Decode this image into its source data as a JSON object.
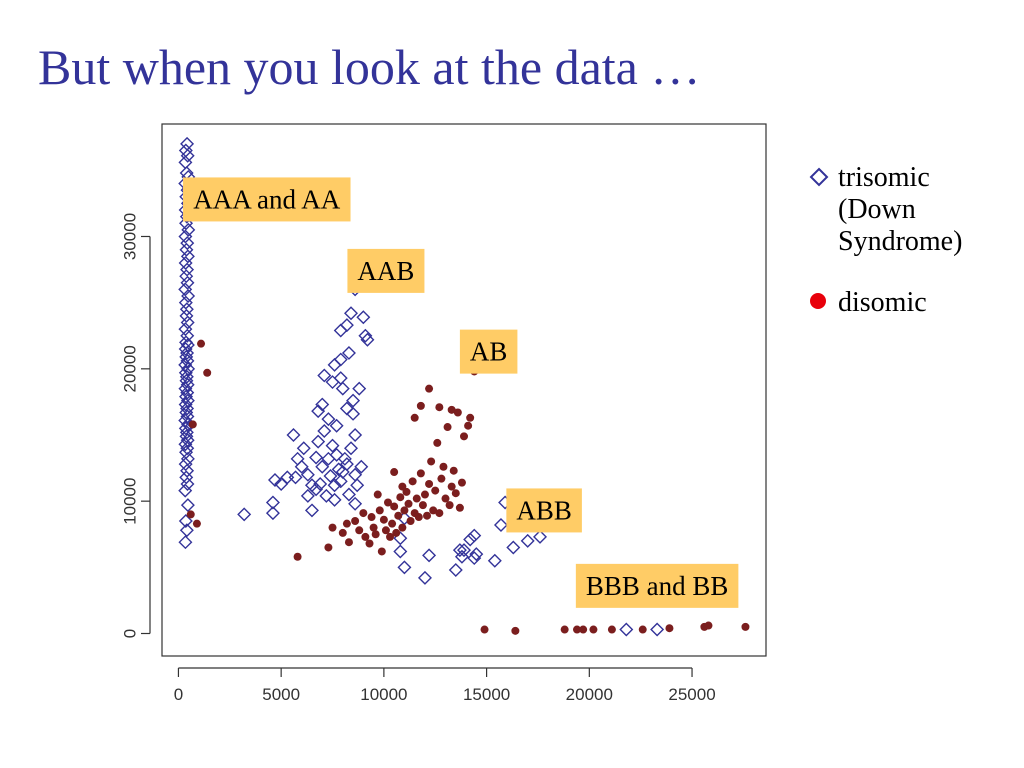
{
  "slide": {
    "title": "But when you look at the data …"
  },
  "legend": {
    "items": [
      {
        "label": "trisomic (Down Syndrome)",
        "marker": "open-diamond",
        "color": "#333399"
      },
      {
        "label": "disomic",
        "marker": "filled-circle",
        "color": "#e8000b"
      }
    ]
  },
  "colors": {
    "title": "#333399",
    "trisomic": "#333399",
    "disomic": "#7b1e1e",
    "label_box": "#ffcc66"
  },
  "chart_data": {
    "type": "scatter",
    "xlim": [
      -800,
      28600
    ],
    "ylim": [
      -1700,
      38500
    ],
    "xticks": [
      0,
      5000,
      10000,
      15000,
      20000,
      25000
    ],
    "yticks": [
      0,
      10000,
      20000,
      30000
    ],
    "grid": false,
    "annotations": [
      {
        "text": "AAA and AA",
        "x": 4300,
        "y": 32800
      },
      {
        "text": "AAB",
        "x": 10100,
        "y": 27400
      },
      {
        "text": "AB",
        "x": 15100,
        "y": 21300
      },
      {
        "text": "ABB",
        "x": 17800,
        "y": 9300
      },
      {
        "text": "BBB and BB",
        "x": 23300,
        "y": 3600
      }
    ],
    "series": [
      {
        "points": [
          [
            420,
            37000
          ],
          [
            360,
            36500
          ],
          [
            450,
            36100
          ],
          [
            340,
            35600
          ],
          [
            400,
            34800
          ],
          [
            480,
            34500
          ],
          [
            330,
            34000
          ],
          [
            440,
            33500
          ],
          [
            380,
            33000
          ],
          [
            460,
            32500
          ],
          [
            350,
            32000
          ],
          [
            410,
            31500
          ],
          [
            370,
            31000
          ],
          [
            480,
            30500
          ],
          [
            340,
            30000
          ],
          [
            430,
            29500
          ],
          [
            390,
            29000
          ],
          [
            460,
            28500
          ],
          [
            350,
            28000
          ],
          [
            420,
            27500
          ],
          [
            380,
            27000
          ],
          [
            440,
            26500
          ],
          [
            330,
            26000
          ],
          [
            470,
            25500
          ],
          [
            360,
            25000
          ],
          [
            410,
            24500
          ],
          [
            390,
            24000
          ],
          [
            450,
            23500
          ],
          [
            340,
            23000
          ],
          [
            430,
            22500
          ],
          [
            370,
            22000
          ],
          [
            460,
            21800
          ],
          [
            350,
            21500
          ],
          [
            420,
            21200
          ],
          [
            380,
            20900
          ],
          [
            440,
            20600
          ],
          [
            330,
            20300
          ],
          [
            470,
            20000
          ],
          [
            360,
            19700
          ],
          [
            410,
            19400
          ],
          [
            390,
            19100
          ],
          [
            450,
            18800
          ],
          [
            340,
            18500
          ],
          [
            430,
            18200
          ],
          [
            370,
            17900
          ],
          [
            460,
            17600
          ],
          [
            350,
            17300
          ],
          [
            420,
            17000
          ],
          [
            380,
            16700
          ],
          [
            440,
            16400
          ],
          [
            330,
            16100
          ],
          [
            470,
            15800
          ],
          [
            360,
            15500
          ],
          [
            410,
            15200
          ],
          [
            390,
            14900
          ],
          [
            450,
            14600
          ],
          [
            340,
            14300
          ],
          [
            430,
            14000
          ],
          [
            370,
            13700
          ],
          [
            460,
            13200
          ],
          [
            350,
            12800
          ],
          [
            420,
            12300
          ],
          [
            380,
            11800
          ],
          [
            440,
            11300
          ],
          [
            330,
            10800
          ],
          [
            460,
            9700
          ],
          [
            360,
            8500
          ],
          [
            410,
            7800
          ],
          [
            340,
            6900
          ],
          [
            3200,
            9000
          ],
          [
            4600,
            9100
          ],
          [
            4600,
            9900
          ],
          [
            4700,
            11600
          ],
          [
            5000,
            11300
          ],
          [
            5300,
            11800
          ],
          [
            5700,
            11800
          ],
          [
            5800,
            13200
          ],
          [
            6000,
            12600
          ],
          [
            6100,
            14000
          ],
          [
            5600,
            15000
          ],
          [
            6300,
            12000
          ],
          [
            6500,
            11200
          ],
          [
            6300,
            10400
          ],
          [
            6700,
            10900
          ],
          [
            6500,
            9300
          ],
          [
            6900,
            11300
          ],
          [
            6700,
            13300
          ],
          [
            7000,
            12600
          ],
          [
            6800,
            14500
          ],
          [
            7100,
            15300
          ],
          [
            6800,
            16800
          ],
          [
            7000,
            17300
          ],
          [
            7300,
            16200
          ],
          [
            7500,
            14200
          ],
          [
            7700,
            15700
          ],
          [
            7300,
            13200
          ],
          [
            7400,
            11900
          ],
          [
            7600,
            11200
          ],
          [
            7200,
            10400
          ],
          [
            7800,
            12400
          ],
          [
            7600,
            10100
          ],
          [
            7900,
            11500
          ],
          [
            7700,
            13500
          ],
          [
            8100,
            13200
          ],
          [
            8400,
            14000
          ],
          [
            8000,
            12200
          ],
          [
            8600,
            12000
          ],
          [
            8700,
            11200
          ],
          [
            8300,
            10500
          ],
          [
            8600,
            9800
          ],
          [
            8900,
            12600
          ],
          [
            8500,
            16600
          ],
          [
            8200,
            17000
          ],
          [
            8500,
            17600
          ],
          [
            8000,
            18500
          ],
          [
            7900,
            19300
          ],
          [
            7500,
            19000
          ],
          [
            7100,
            19500
          ],
          [
            7600,
            20300
          ],
          [
            7900,
            20700
          ],
          [
            8300,
            21200
          ],
          [
            7900,
            22900
          ],
          [
            8200,
            23300
          ],
          [
            8400,
            24200
          ],
          [
            8600,
            26000
          ],
          [
            9000,
            23900
          ],
          [
            9100,
            22500
          ],
          [
            9200,
            22200
          ],
          [
            8800,
            18500
          ],
          [
            8600,
            15000
          ],
          [
            8200,
            12800
          ],
          [
            11000,
            8700
          ],
          [
            10800,
            7200
          ],
          [
            10800,
            6200
          ],
          [
            11000,
            5000
          ],
          [
            12000,
            4200
          ],
          [
            12200,
            5900
          ],
          [
            13500,
            4800
          ],
          [
            13800,
            5800
          ],
          [
            13700,
            6300
          ],
          [
            13900,
            6300
          ],
          [
            14200,
            7100
          ],
          [
            14400,
            7400
          ],
          [
            14500,
            6000
          ],
          [
            14400,
            5700
          ],
          [
            15400,
            5500
          ],
          [
            15700,
            8200
          ],
          [
            15900,
            9900
          ],
          [
            16300,
            6500
          ],
          [
            17000,
            7000
          ],
          [
            17600,
            7300
          ],
          [
            21800,
            300
          ],
          [
            23300,
            300
          ]
        ]
      },
      {
        "points": [
          [
            500,
            32700
          ],
          [
            800,
            32600
          ],
          [
            1100,
            21900
          ],
          [
            1400,
            19700
          ],
          [
            700,
            15800
          ],
          [
            600,
            9000
          ],
          [
            900,
            8300
          ],
          [
            5800,
            5800
          ],
          [
            7300,
            6500
          ],
          [
            7500,
            8000
          ],
          [
            8000,
            7600
          ],
          [
            8200,
            8300
          ],
          [
            8300,
            6900
          ],
          [
            8600,
            8500
          ],
          [
            8800,
            7800
          ],
          [
            9000,
            9100
          ],
          [
            9100,
            7300
          ],
          [
            9300,
            6800
          ],
          [
            9400,
            8800
          ],
          [
            9500,
            8000
          ],
          [
            9600,
            7500
          ],
          [
            9800,
            9300
          ],
          [
            9900,
            6200
          ],
          [
            10000,
            8600
          ],
          [
            10100,
            7800
          ],
          [
            10200,
            9900
          ],
          [
            10300,
            7300
          ],
          [
            10400,
            8300
          ],
          [
            10500,
            9600
          ],
          [
            10600,
            7600
          ],
          [
            10700,
            8900
          ],
          [
            10800,
            10300
          ],
          [
            10900,
            8000
          ],
          [
            11000,
            9300
          ],
          [
            11100,
            10700
          ],
          [
            11200,
            9800
          ],
          [
            11300,
            8500
          ],
          [
            11400,
            11500
          ],
          [
            11500,
            9100
          ],
          [
            11600,
            10200
          ],
          [
            11700,
            8800
          ],
          [
            11800,
            12100
          ],
          [
            11900,
            9700
          ],
          [
            12000,
            10500
          ],
          [
            12100,
            8900
          ],
          [
            12200,
            11300
          ],
          [
            12300,
            13000
          ],
          [
            12400,
            9300
          ],
          [
            12500,
            10800
          ],
          [
            12600,
            14400
          ],
          [
            12700,
            9100
          ],
          [
            12800,
            11700
          ],
          [
            12900,
            12600
          ],
          [
            13000,
            10200
          ],
          [
            13100,
            15600
          ],
          [
            13200,
            9700
          ],
          [
            13300,
            11100
          ],
          [
            13400,
            12300
          ],
          [
            13500,
            10600
          ],
          [
            13600,
            16700
          ],
          [
            13700,
            9500
          ],
          [
            13800,
            11400
          ],
          [
            13900,
            14900
          ],
          [
            14100,
            15700
          ],
          [
            14200,
            16300
          ],
          [
            14400,
            19800
          ],
          [
            15100,
            20000
          ],
          [
            11500,
            16300
          ],
          [
            11800,
            17200
          ],
          [
            12200,
            18500
          ],
          [
            12700,
            17100
          ],
          [
            13300,
            16900
          ],
          [
            10500,
            12200
          ],
          [
            10900,
            11100
          ],
          [
            9700,
            10500
          ],
          [
            14900,
            300
          ],
          [
            16400,
            200
          ],
          [
            18800,
            300
          ],
          [
            19400,
            300
          ],
          [
            19700,
            300
          ],
          [
            20200,
            300
          ],
          [
            21100,
            300
          ],
          [
            22600,
            300
          ],
          [
            23900,
            400
          ],
          [
            25600,
            500
          ],
          [
            25800,
            600
          ],
          [
            27600,
            500
          ]
        ]
      }
    ]
  }
}
